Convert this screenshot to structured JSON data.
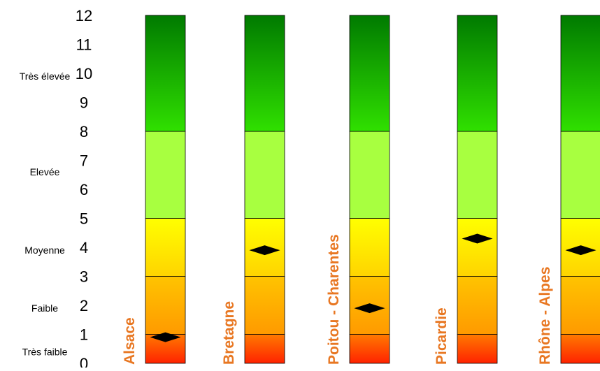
{
  "chart_data": {
    "type": "bar",
    "categories": [
      "Alsace",
      "Bretagne",
      "Poitou - Charentes",
      "Picardie",
      "Rhône - Alpes"
    ],
    "values": [
      0.9,
      3.9,
      1.9,
      4.3,
      3.9
    ],
    "ylim": [
      0,
      12
    ],
    "y_ticks": [
      "0",
      "1",
      "2",
      "3",
      "4",
      "5",
      "6",
      "7",
      "8",
      "9",
      "10",
      "11",
      "12"
    ],
    "levels": [
      {
        "label": "Très faible",
        "value": 0.4
      },
      {
        "label": "Faible",
        "value": 1.9
      },
      {
        "label": "Moyenne",
        "value": 3.9
      },
      {
        "label": "Elevée",
        "value": 6.6
      },
      {
        "label": "Très élevée",
        "value": 9.9
      }
    ],
    "bands": [
      {
        "from": 0,
        "to": 1,
        "color_top": "#ff7a00",
        "color_bottom": "#ff2200"
      },
      {
        "from": 1,
        "to": 3,
        "color_top": "#ffc400",
        "color_bottom": "#ff9a00"
      },
      {
        "from": 3,
        "to": 5,
        "color_top": "#ffff00",
        "color_bottom": "#ffd400"
      },
      {
        "from": 5,
        "to": 8,
        "color_top": "#a8ff40",
        "color_bottom": "#a8ff40"
      },
      {
        "from": 8,
        "to": 12,
        "color_top": "#007a00",
        "color_bottom": "#30e000"
      }
    ],
    "label_color": "#e87722",
    "marker_color": "#000000",
    "grid": false
  }
}
